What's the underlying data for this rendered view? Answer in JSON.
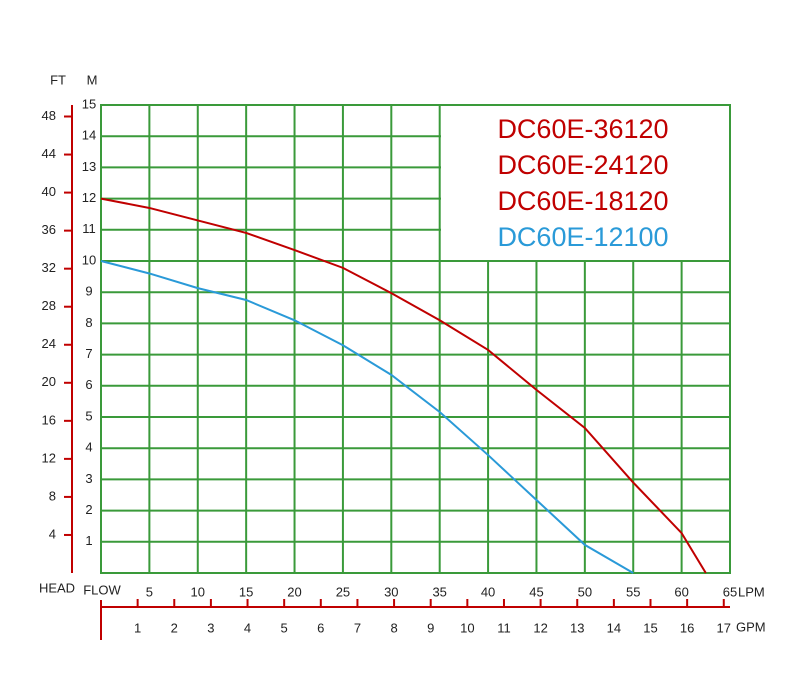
{
  "chart_data": {
    "type": "line",
    "y_label": "M",
    "y2_label": "FT",
    "head_label": "HEAD",
    "flow_label": "FLOW",
    "x_label": "LPM",
    "x2_label": "GPM",
    "x": [
      0,
      5,
      10,
      15,
      20,
      25,
      30,
      35,
      40,
      45,
      50,
      55,
      60,
      62.5
    ],
    "series": [
      {
        "names": [
          "DC60E-36120",
          "DC60E-24120",
          "DC60E-18120"
        ],
        "color": "#c00000",
        "values": [
          12,
          11.7,
          11.3,
          10.9,
          10.35,
          9.78,
          8.97,
          8.1,
          7.15,
          5.87,
          4.65,
          2.9,
          1.28,
          0
        ]
      },
      {
        "name": "DC60E-12100",
        "color": "#2a9ad8",
        "values": [
          10,
          9.6,
          9.13,
          8.75,
          8.1,
          7.3,
          6.35,
          5.16,
          3.78,
          2.34,
          0.9,
          0,
          null,
          null
        ]
      }
    ],
    "xlim": [
      0,
      65
    ],
    "xticks": [
      5,
      10,
      15,
      20,
      25,
      30,
      35,
      40,
      45,
      50,
      55,
      60,
      65
    ],
    "x2lim": [
      0,
      17.17
    ],
    "x2ticks": [
      1,
      2,
      3,
      4,
      5,
      6,
      7,
      8,
      9,
      10,
      11,
      12,
      13,
      14,
      15,
      16,
      17
    ],
    "ylim": [
      0,
      15
    ],
    "yticks": [
      1,
      2,
      3,
      4,
      5,
      6,
      7,
      8,
      9,
      10,
      11,
      12,
      13,
      14,
      15
    ],
    "y2lim": [
      0,
      49.21
    ],
    "y2ticks": [
      4,
      8,
      12,
      16,
      20,
      24,
      28,
      32,
      36,
      40,
      44,
      48
    ],
    "grid": true,
    "grid_color": "#3a9a3a",
    "axis_color": "#c00000"
  }
}
